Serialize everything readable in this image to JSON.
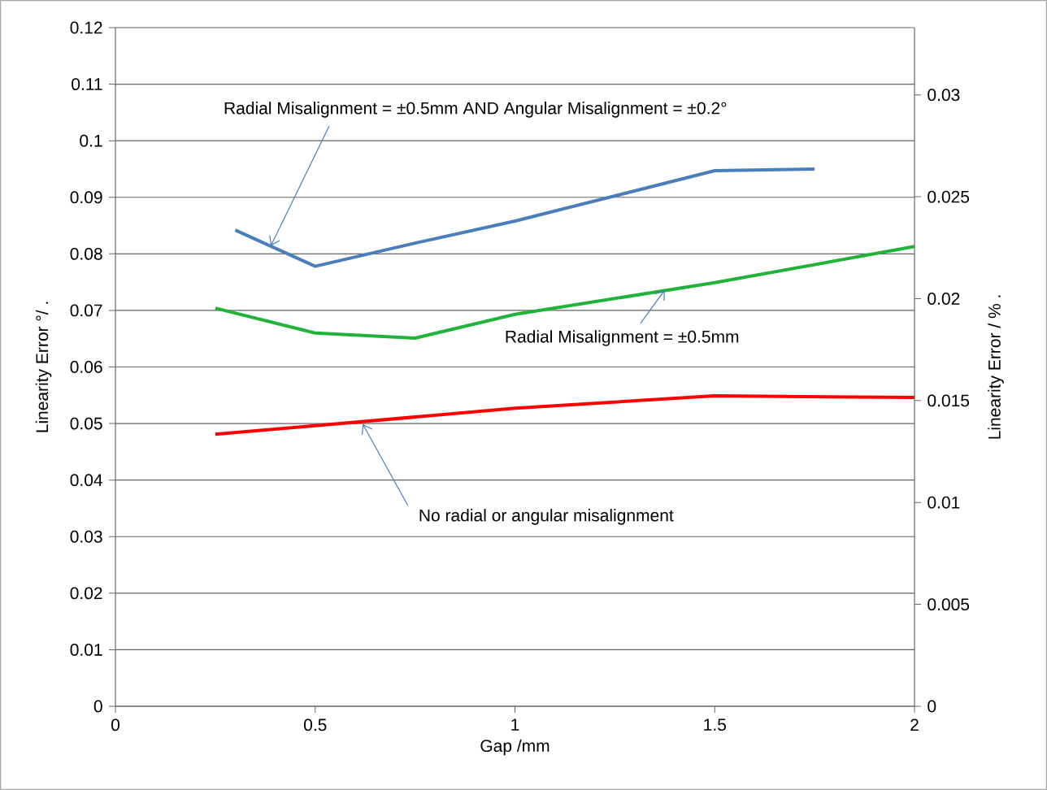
{
  "chart_data": {
    "type": "line",
    "xlabel": "Gap /mm",
    "ylabel": "Linearity Error °/ .",
    "y2label": "Linearity Error / % .",
    "xlim": [
      0,
      2
    ],
    "xticks": [
      0,
      0.5,
      1,
      1.5,
      2
    ],
    "ylim": [
      0,
      0.12
    ],
    "yticks": [
      0,
      0.01,
      0.02,
      0.03,
      0.04,
      0.05,
      0.06,
      0.07,
      0.08,
      0.09,
      0.1,
      0.11,
      0.12
    ],
    "y2lim": [
      0,
      0.0333
    ],
    "y2ticks": [
      0,
      0.005,
      0.01,
      0.015,
      0.02,
      0.025,
      0.03
    ],
    "grid": "y",
    "legend": false,
    "marker": "none",
    "line_style": "solid",
    "series": [
      {
        "color": "#4a7ebb",
        "x": [
          0.3,
          0.5,
          0.75,
          1,
          1.5,
          1.75
        ],
        "values": [
          0.0842,
          0.0778,
          0.0819,
          0.0858,
          0.0947,
          0.095
        ]
      },
      {
        "color": "#1fb33a",
        "x": [
          0.25,
          0.5,
          0.75,
          1,
          1.5,
          2
        ],
        "values": [
          0.0704,
          0.066,
          0.0651,
          0.0693,
          0.0749,
          0.0813
        ]
      },
      {
        "color": "#ff0000",
        "x": [
          0.25,
          0.5,
          1,
          1.5,
          2
        ],
        "values": [
          0.0481,
          0.0496,
          0.0527,
          0.0549,
          0.0546
        ]
      }
    ],
    "annotations": [
      {
        "text": "Radial Misalignment = ±0.5mm AND Angular Misalignment = ±0.2°",
        "x": 0.389,
        "y": 0.0814
      },
      {
        "text": "Radial Misalignment = ±0.5mm",
        "x": 1.375,
        "y": 0.0736
      },
      {
        "text": "No radial or angular misalignment",
        "x": 0.619,
        "y": 0.0499
      }
    ]
  }
}
